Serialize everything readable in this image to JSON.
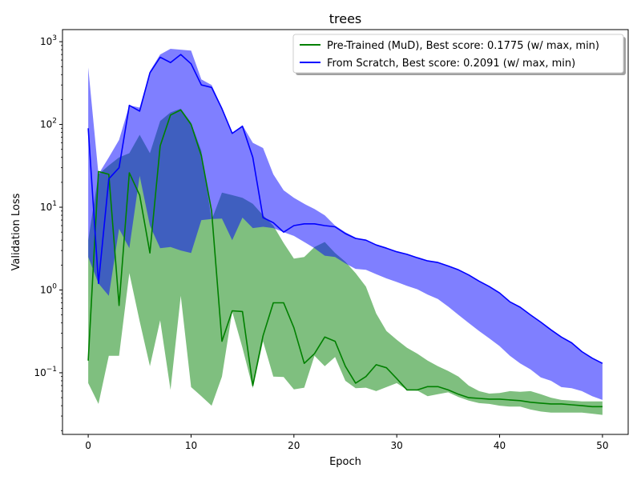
{
  "chart_data": {
    "type": "area",
    "title": "trees",
    "xlabel": "Epoch",
    "ylabel": "Validation Loss",
    "yscale": "log",
    "xlim": [
      -2.5,
      52.5
    ],
    "ylim": [
      0.018,
      1400
    ],
    "xticks": [
      "0",
      "10",
      "20",
      "30",
      "40",
      "50"
    ],
    "yticks": [
      {
        "value": 0.1,
        "base": "10",
        "exp": "−1"
      },
      {
        "value": 1,
        "base": "10",
        "exp": "0"
      },
      {
        "value": 10,
        "base": "10",
        "exp": "1"
      },
      {
        "value": 100,
        "base": "10",
        "exp": "2"
      },
      {
        "value": 1000,
        "base": "10",
        "exp": "3"
      }
    ],
    "legend_position": "top-right",
    "series": [
      {
        "name": "Pre-Trained (MuD), Best score: 0.1775 (w/ max, min)",
        "color": "#008000",
        "fill_color": "#008000",
        "x": [
          0,
          1,
          2,
          3,
          4,
          5,
          6,
          7,
          8,
          9,
          10,
          11,
          12,
          13,
          14,
          15,
          16,
          17,
          18,
          19,
          20,
          21,
          22,
          23,
          24,
          25,
          26,
          27,
          28,
          29,
          30,
          31,
          32,
          33,
          34,
          35,
          36,
          37,
          38,
          39,
          40,
          41,
          42,
          43,
          44,
          45,
          46,
          47,
          48,
          49,
          50
        ],
        "mean": [
          0.14,
          27,
          25,
          0.65,
          26,
          14,
          2.8,
          55,
          130,
          150,
          100,
          42,
          9.0,
          0.24,
          0.56,
          0.55,
          0.07,
          0.28,
          0.7,
          0.7,
          0.35,
          0.13,
          0.17,
          0.27,
          0.24,
          0.12,
          0.075,
          0.09,
          0.125,
          0.115,
          0.085,
          0.062,
          0.062,
          0.068,
          0.068,
          0.062,
          0.055,
          0.05,
          0.049,
          0.048,
          0.048,
          0.047,
          0.046,
          0.044,
          0.043,
          0.042,
          0.042,
          0.041,
          0.04,
          0.039,
          0.039
        ],
        "max": [
          4.0,
          25,
          32,
          40,
          45,
          75,
          45,
          110,
          140,
          155,
          105,
          48,
          7.0,
          15,
          14,
          13,
          11,
          8.0,
          6.0,
          3.7,
          2.4,
          2.5,
          3.3,
          3.8,
          2.8,
          2.2,
          1.6,
          1.1,
          0.52,
          0.32,
          0.25,
          0.2,
          0.17,
          0.14,
          0.12,
          0.105,
          0.09,
          0.07,
          0.06,
          0.056,
          0.057,
          0.06,
          0.059,
          0.06,
          0.055,
          0.05,
          0.047,
          0.046,
          0.045,
          0.045,
          0.045
        ],
        "min": [
          0.075,
          0.042,
          0.16,
          0.16,
          1.6,
          0.42,
          0.12,
          0.43,
          0.062,
          0.85,
          0.067,
          0.052,
          0.04,
          0.09,
          0.55,
          0.2,
          0.065,
          0.24,
          0.09,
          0.089,
          0.063,
          0.066,
          0.16,
          0.12,
          0.155,
          0.08,
          0.065,
          0.066,
          0.06,
          0.067,
          0.075,
          0.062,
          0.061,
          0.052,
          0.055,
          0.058,
          0.051,
          0.046,
          0.043,
          0.042,
          0.04,
          0.039,
          0.039,
          0.036,
          0.034,
          0.033,
          0.033,
          0.033,
          0.033,
          0.032,
          0.031
        ]
      },
      {
        "name": "From Scratch, Best score: 0.2091 (w/ max, min)",
        "color": "#0000ff",
        "fill_color": "#0000ff",
        "x": [
          0,
          1,
          2,
          3,
          4,
          5,
          6,
          7,
          8,
          9,
          10,
          11,
          12,
          13,
          14,
          15,
          16,
          17,
          18,
          19,
          20,
          21,
          22,
          23,
          24,
          25,
          26,
          27,
          28,
          29,
          30,
          31,
          32,
          33,
          34,
          35,
          36,
          37,
          38,
          39,
          40,
          41,
          42,
          43,
          44,
          45,
          46,
          47,
          48,
          49,
          50
        ],
        "mean": [
          90,
          1.2,
          22,
          30,
          170,
          145,
          420,
          650,
          560,
          700,
          540,
          300,
          280,
          155,
          78,
          95,
          40,
          7.5,
          6.5,
          5.0,
          6.0,
          6.3,
          6.3,
          6.0,
          5.8,
          4.8,
          4.2,
          4.0,
          3.5,
          3.2,
          2.9,
          2.7,
          2.45,
          2.25,
          2.15,
          1.95,
          1.75,
          1.52,
          1.28,
          1.1,
          0.92,
          0.72,
          0.62,
          0.5,
          0.41,
          0.33,
          0.27,
          0.23,
          0.18,
          0.15,
          0.13
        ],
        "max": [
          490,
          25,
          40,
          65,
          170,
          160,
          440,
          700,
          820,
          800,
          780,
          350,
          300,
          160,
          79,
          98,
          60,
          52,
          25,
          16,
          13,
          11,
          9.5,
          8.0,
          6.0,
          5.0,
          4.3,
          4.0,
          3.5,
          3.2,
          2.9,
          2.7,
          2.45,
          2.25,
          2.15,
          1.95,
          1.75,
          1.52,
          1.28,
          1.1,
          0.92,
          0.72,
          0.62,
          0.5,
          0.41,
          0.33,
          0.27,
          0.23,
          0.18,
          0.15,
          0.13
        ],
        "min": [
          2.5,
          1.2,
          0.85,
          5.5,
          3.2,
          24,
          6.0,
          3.2,
          3.3,
          3.0,
          2.8,
          7.0,
          7.2,
          7.3,
          4.0,
          7.5,
          5.6,
          5.8,
          5.6,
          5.0,
          4.5,
          3.8,
          3.2,
          2.6,
          2.5,
          2.1,
          1.8,
          1.75,
          1.55,
          1.38,
          1.25,
          1.12,
          1.02,
          0.88,
          0.78,
          0.63,
          0.5,
          0.4,
          0.32,
          0.26,
          0.21,
          0.16,
          0.13,
          0.11,
          0.088,
          0.08,
          0.067,
          0.065,
          0.06,
          0.052,
          0.047
        ]
      }
    ]
  }
}
